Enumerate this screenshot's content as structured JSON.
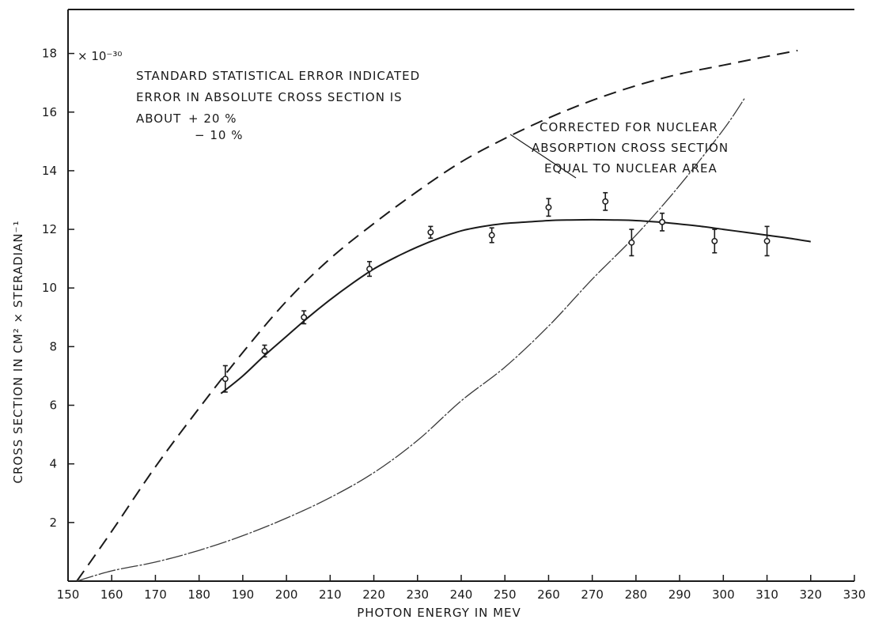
{
  "chart_data": {
    "type": "line",
    "title": "",
    "xlabel": "PHOTON ENERGY IN MEV",
    "ylabel": "CROSS SECTION IN CM² × STERADIAN⁻¹",
    "y_multiplier": "× 10⁻³⁰",
    "xlim": [
      150,
      330
    ],
    "ylim": [
      0,
      19.5
    ],
    "x_ticks": [
      150,
      160,
      170,
      180,
      190,
      200,
      210,
      220,
      230,
      240,
      250,
      260,
      270,
      280,
      290,
      300,
      310,
      320,
      330
    ],
    "y_ticks": [
      2,
      4,
      6,
      8,
      10,
      12,
      14,
      16,
      18
    ],
    "grid": false,
    "annotations": {
      "line1": "STANDARD STATISTICAL ERROR INDICATED",
      "line2": "ERROR IN ABSOLUTE CROSS SECTION IS",
      "line3": "ABOUT",
      "plus": "+ 20 %",
      "minus": "− 10 %",
      "dashed_label_1": "CORRECTED FOR NUCLEAR",
      "dashed_label_2": "ABSORPTION CROSS SECTION",
      "dashed_label_3": "EQUAL TO NUCLEAR AREA"
    },
    "data_points": [
      {
        "x": 186,
        "y": 6.9,
        "err": 0.45
      },
      {
        "x": 195,
        "y": 7.85,
        "err": 0.2
      },
      {
        "x": 204,
        "y": 9.0,
        "err": 0.22
      },
      {
        "x": 219,
        "y": 10.65,
        "err": 0.25
      },
      {
        "x": 233,
        "y": 11.9,
        "err": 0.2
      },
      {
        "x": 247,
        "y": 11.8,
        "err": 0.25
      },
      {
        "x": 260,
        "y": 12.75,
        "err": 0.3
      },
      {
        "x": 273,
        "y": 12.95,
        "err": 0.3
      },
      {
        "x": 279,
        "y": 11.55,
        "err": 0.45
      },
      {
        "x": 286,
        "y": 12.25,
        "err": 0.3
      },
      {
        "x": 298,
        "y": 11.6,
        "err": 0.4
      },
      {
        "x": 310,
        "y": 11.6,
        "err": 0.5
      }
    ],
    "series": [
      {
        "style": "solid",
        "x": [
          185,
          190,
          195,
          200,
          205,
          210,
          215,
          220,
          225,
          230,
          235,
          240,
          245,
          250,
          255,
          260,
          265,
          270,
          275,
          280,
          285,
          290,
          295,
          300,
          305,
          310,
          315,
          320
        ],
        "y": [
          6.4,
          7.0,
          7.7,
          8.35,
          9.0,
          9.6,
          10.15,
          10.65,
          11.05,
          11.4,
          11.7,
          11.95,
          12.1,
          12.2,
          12.25,
          12.3,
          12.32,
          12.33,
          12.32,
          12.3,
          12.25,
          12.18,
          12.1,
          12.0,
          11.9,
          11.8,
          11.7,
          11.58
        ]
      },
      {
        "style": "dashed",
        "x": [
          152,
          160,
          170,
          180,
          190,
          200,
          210,
          220,
          230,
          240,
          250,
          260,
          270,
          280,
          290,
          300,
          310,
          317
        ],
        "y": [
          0.0,
          1.7,
          3.9,
          5.9,
          7.8,
          9.55,
          11.0,
          12.2,
          13.3,
          14.3,
          15.1,
          15.8,
          16.4,
          16.9,
          17.3,
          17.6,
          17.9,
          18.1
        ]
      },
      {
        "style": "thin",
        "x": [
          152,
          160,
          170,
          180,
          190,
          200,
          210,
          220,
          230,
          240,
          250,
          260,
          270,
          280,
          290,
          300,
          305
        ],
        "y": [
          0.0,
          0.35,
          0.65,
          1.05,
          1.55,
          2.15,
          2.85,
          3.7,
          4.8,
          6.15,
          7.3,
          8.7,
          10.3,
          11.8,
          13.5,
          15.4,
          16.5
        ]
      }
    ]
  }
}
